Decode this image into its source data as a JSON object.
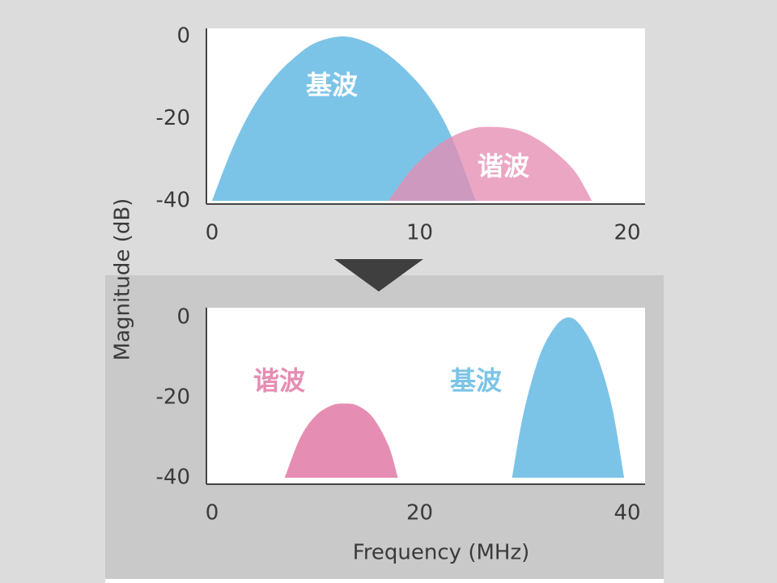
{
  "chart_data": [
    {
      "type": "area",
      "ylabel": "Magnitude (dB)",
      "xlim": [
        0,
        20
      ],
      "ylim": [
        -40,
        0
      ],
      "xticks": [
        0,
        10,
        20
      ],
      "yticks": [
        0,
        -20,
        -40
      ],
      "series": [
        {
          "name": "基波",
          "color": "#7cc4e7",
          "x": [
            0,
            1,
            2,
            3,
            4,
            5,
            6.3,
            7.5,
            8.5,
            9.5,
            10.5,
            11.5,
            12.7
          ],
          "values": [
            -40,
            -27,
            -17,
            -10,
            -5,
            -1.5,
            0,
            -1.5,
            -4.5,
            -9,
            -15,
            -24,
            -40
          ]
        },
        {
          "name": "谐波",
          "color": "#e68db3",
          "x": [
            8.5,
            9.5,
            10.5,
            11.5,
            12.5,
            13.3,
            14.5,
            15.5,
            16.5,
            17.5,
            18.3
          ],
          "values": [
            -40,
            -33,
            -28,
            -24.5,
            -22.5,
            -22,
            -22.5,
            -24.5,
            -28,
            -33,
            -40
          ]
        }
      ]
    },
    {
      "type": "area",
      "xlabel": "Frequency (MHz)",
      "xlim": [
        0,
        40
      ],
      "ylim": [
        -40,
        0
      ],
      "xticks": [
        0,
        20,
        40
      ],
      "yticks": [
        0,
        -20,
        -40
      ],
      "series": [
        {
          "name": "谐波",
          "color": "#e68db3",
          "x": [
            7,
            8.5,
            10,
            11.5,
            12.7,
            14,
            15.5,
            17,
            17.9
          ],
          "values": [
            -40,
            -30,
            -24.5,
            -22,
            -21.5,
            -22,
            -25,
            -32,
            -40
          ]
        },
        {
          "name": "基波",
          "color": "#7cc4e7",
          "x": [
            28.9,
            30,
            31.5,
            33,
            34.3,
            35.5,
            37,
            38.5,
            39.7
          ],
          "values": [
            -40,
            -24,
            -10,
            -2.5,
            0,
            -2,
            -9,
            -22,
            -40
          ]
        }
      ]
    }
  ]
}
